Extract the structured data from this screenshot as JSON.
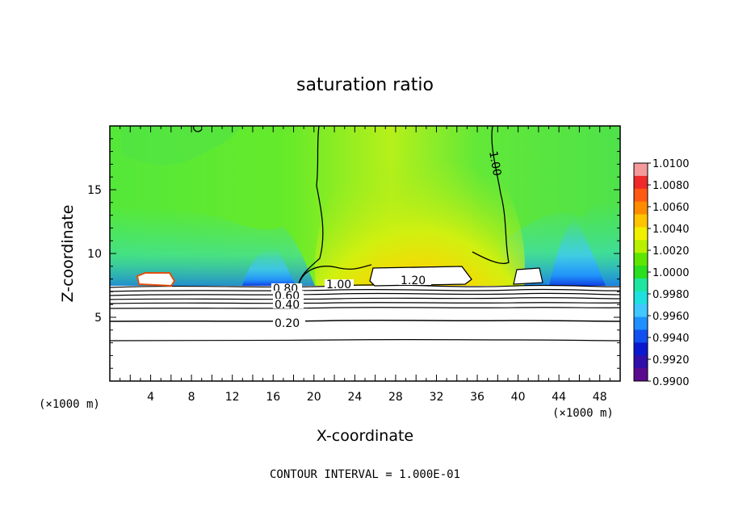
{
  "chart_data": {
    "type": "heatmap",
    "title": "saturation ratio",
    "xlabel": "X-coordinate",
    "ylabel": "Z-coordinate",
    "x_unit": "(×1000 m)",
    "y_unit": "(×1000 m)",
    "xlim": [
      0,
      50
    ],
    "ylim": [
      0,
      20
    ],
    "x_ticks": [
      "4",
      "8",
      "12",
      "16",
      "20",
      "24",
      "28",
      "32",
      "36",
      "40",
      "44",
      "48"
    ],
    "y_ticks": [
      "5",
      "10",
      "15"
    ],
    "colorbar": {
      "min": 0.99,
      "max": 1.01,
      "ticks": [
        "1.0100",
        "1.0080",
        "1.0060",
        "1.0040",
        "1.0020",
        "1.0000",
        "0.9980",
        "0.9960",
        "0.9940",
        "0.9920",
        "0.9900"
      ],
      "colors": [
        "#f49a9a",
        "#f02a2a",
        "#ff5a14",
        "#ff8c00",
        "#ffc400",
        "#f0f000",
        "#b8f000",
        "#5ee600",
        "#2ade20",
        "#1ee6a0",
        "#20e0e0",
        "#40c8ff",
        "#2090ff",
        "#1050f0",
        "#0a18d0",
        "#3010a8",
        "#5a0a8c"
      ]
    },
    "contour_labels": [
      "0.20",
      "0.40",
      "0.60",
      "0.80",
      "1.00",
      "1.20",
      "1.00"
    ],
    "contour_interval": "CONTOUR INTERVAL = 1.000E-01"
  }
}
